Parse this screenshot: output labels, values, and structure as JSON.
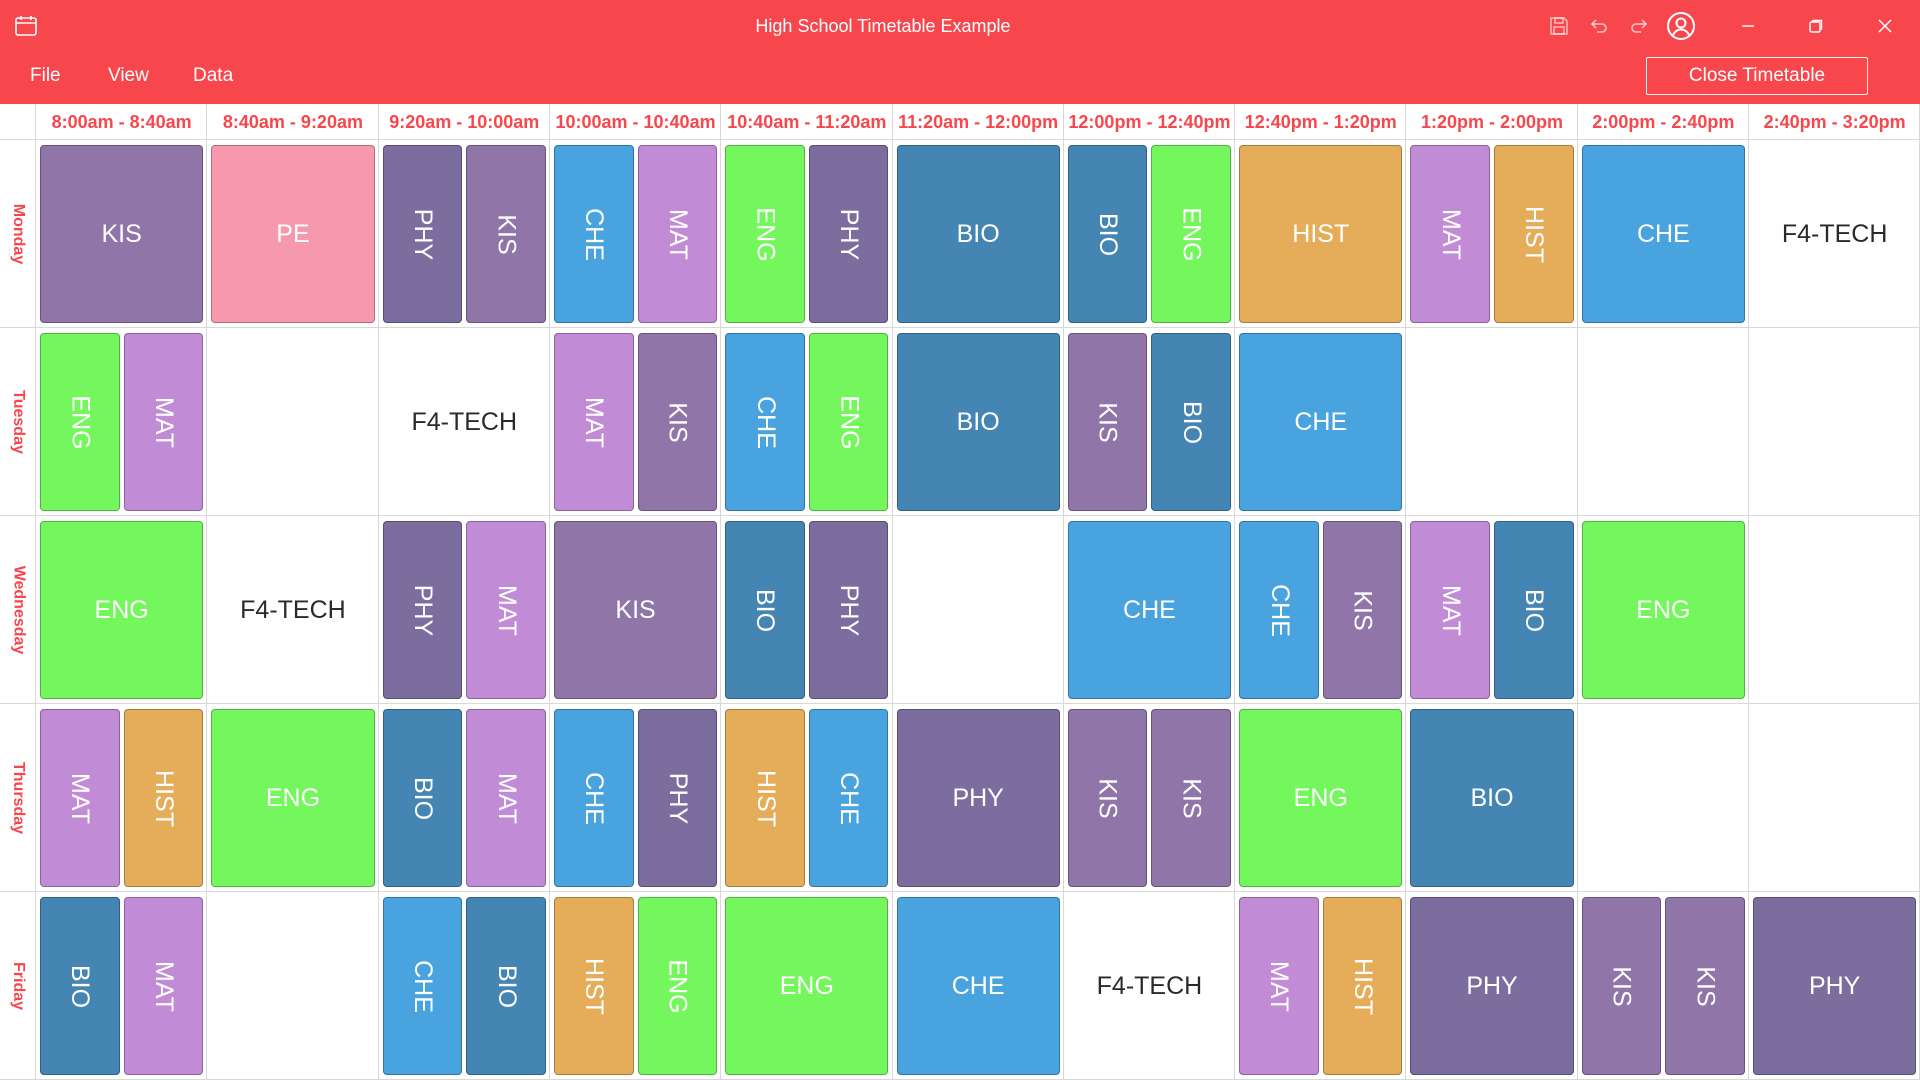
{
  "window": {
    "title": "High School Timetable Example",
    "icons": [
      "calendar-icon",
      "save-icon",
      "undo-icon",
      "redo-icon",
      "account-icon",
      "minimize-icon",
      "restore-icon",
      "close-icon"
    ]
  },
  "menu": {
    "items": [
      "File",
      "View",
      "Data"
    ],
    "close_button": "Close Timetable"
  },
  "colors": {
    "accent": "#f7474d",
    "KIS": "#9075a8",
    "PE": "#f799ac",
    "PHY": "#7b6d9e",
    "CHE": "#48a3de",
    "MAT": "#c18bd6",
    "ENG": "#74f75d",
    "BIO": "#4585b3",
    "HIST": "#e5ad5a"
  },
  "timetable": {
    "times": [
      "8:00am - 8:40am",
      "8:40am - 9:20am",
      "9:20am - 10:00am",
      "10:00am - 10:40am",
      "10:40am - 11:20am",
      "11:20am - 12:00pm",
      "12:00pm - 12:40pm",
      "12:40pm - 1:20pm",
      "1:20pm - 2:00pm",
      "2:00pm - 2:40pm",
      "2:40pm - 3:20pm"
    ],
    "days": [
      "Monday",
      "Tuesday",
      "Wednesday",
      "Thursday",
      "Friday"
    ],
    "schedule": [
      [
        [
          "KIS"
        ],
        [
          "PE"
        ],
        [
          "PHY",
          "KIS"
        ],
        [
          "CHE",
          "MAT"
        ],
        [
          "ENG",
          "PHY"
        ],
        [
          "BIO"
        ],
        [
          "BIO",
          "ENG"
        ],
        [
          "HIST"
        ],
        [
          "MAT",
          "HIST"
        ],
        [
          "CHE"
        ],
        [
          "F4-TECH"
        ]
      ],
      [
        [
          "ENG",
          "MAT"
        ],
        [],
        [
          "F4-TECH"
        ],
        [
          "MAT",
          "KIS"
        ],
        [
          "CHE",
          "ENG"
        ],
        [
          "BIO"
        ],
        [
          "KIS",
          "BIO"
        ],
        [
          "CHE"
        ],
        [],
        [],
        []
      ],
      [
        [
          "ENG"
        ],
        [
          "F4-TECH"
        ],
        [
          "PHY",
          "MAT"
        ],
        [
          "KIS"
        ],
        [
          "BIO",
          "PHY"
        ],
        [],
        [
          "CHE"
        ],
        [
          "CHE",
          "KIS"
        ],
        [
          "MAT",
          "BIO"
        ],
        [
          "ENG"
        ],
        []
      ],
      [
        [
          "MAT",
          "HIST"
        ],
        [
          "ENG"
        ],
        [
          "BIO",
          "MAT"
        ],
        [
          "CHE",
          "PHY"
        ],
        [
          "HIST",
          "CHE"
        ],
        [
          "PHY"
        ],
        [
          "KIS",
          "KIS"
        ],
        [
          "ENG"
        ],
        [
          "BIO"
        ],
        [],
        []
      ],
      [
        [
          "BIO",
          "MAT"
        ],
        [],
        [
          "CHE",
          "BIO"
        ],
        [
          "HIST",
          "ENG"
        ],
        [
          "ENG"
        ],
        [
          "CHE"
        ],
        [
          "F4-TECH"
        ],
        [
          "MAT",
          "HIST"
        ],
        [
          "PHY"
        ],
        [
          "KIS",
          "KIS"
        ],
        [
          "PHY"
        ]
      ]
    ]
  }
}
